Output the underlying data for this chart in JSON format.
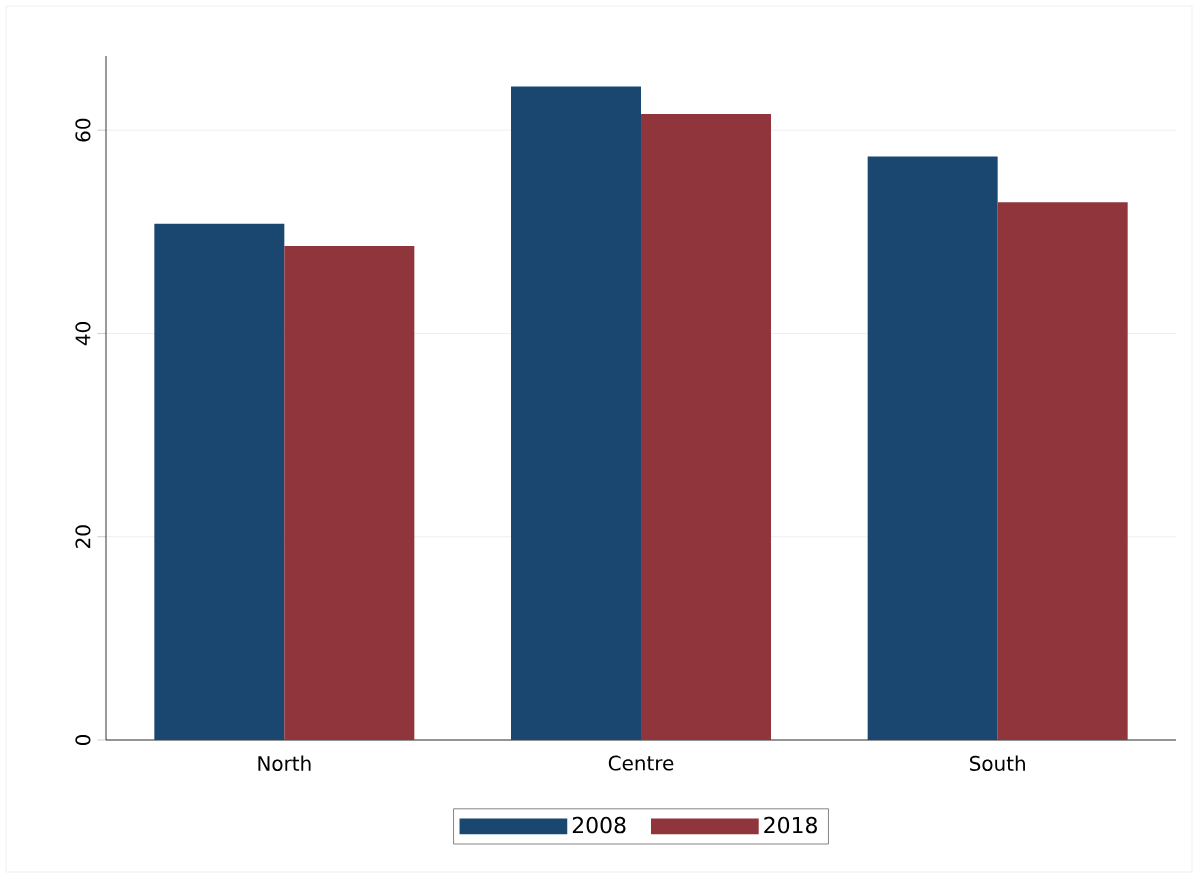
{
  "chart_data": {
    "type": "bar",
    "categories": [
      "North",
      "Centre",
      "South"
    ],
    "series": [
      {
        "name": "2008",
        "color": "#1a476f",
        "values": [
          50.8,
          64.3,
          57.4
        ]
      },
      {
        "name": "2018",
        "color": "#90353b",
        "values": [
          48.6,
          61.6,
          52.9
        ]
      }
    ],
    "ylim": [
      0,
      67.3
    ],
    "yticks": [
      0,
      20,
      40,
      60
    ],
    "grid": "y",
    "legend": "bottom"
  }
}
